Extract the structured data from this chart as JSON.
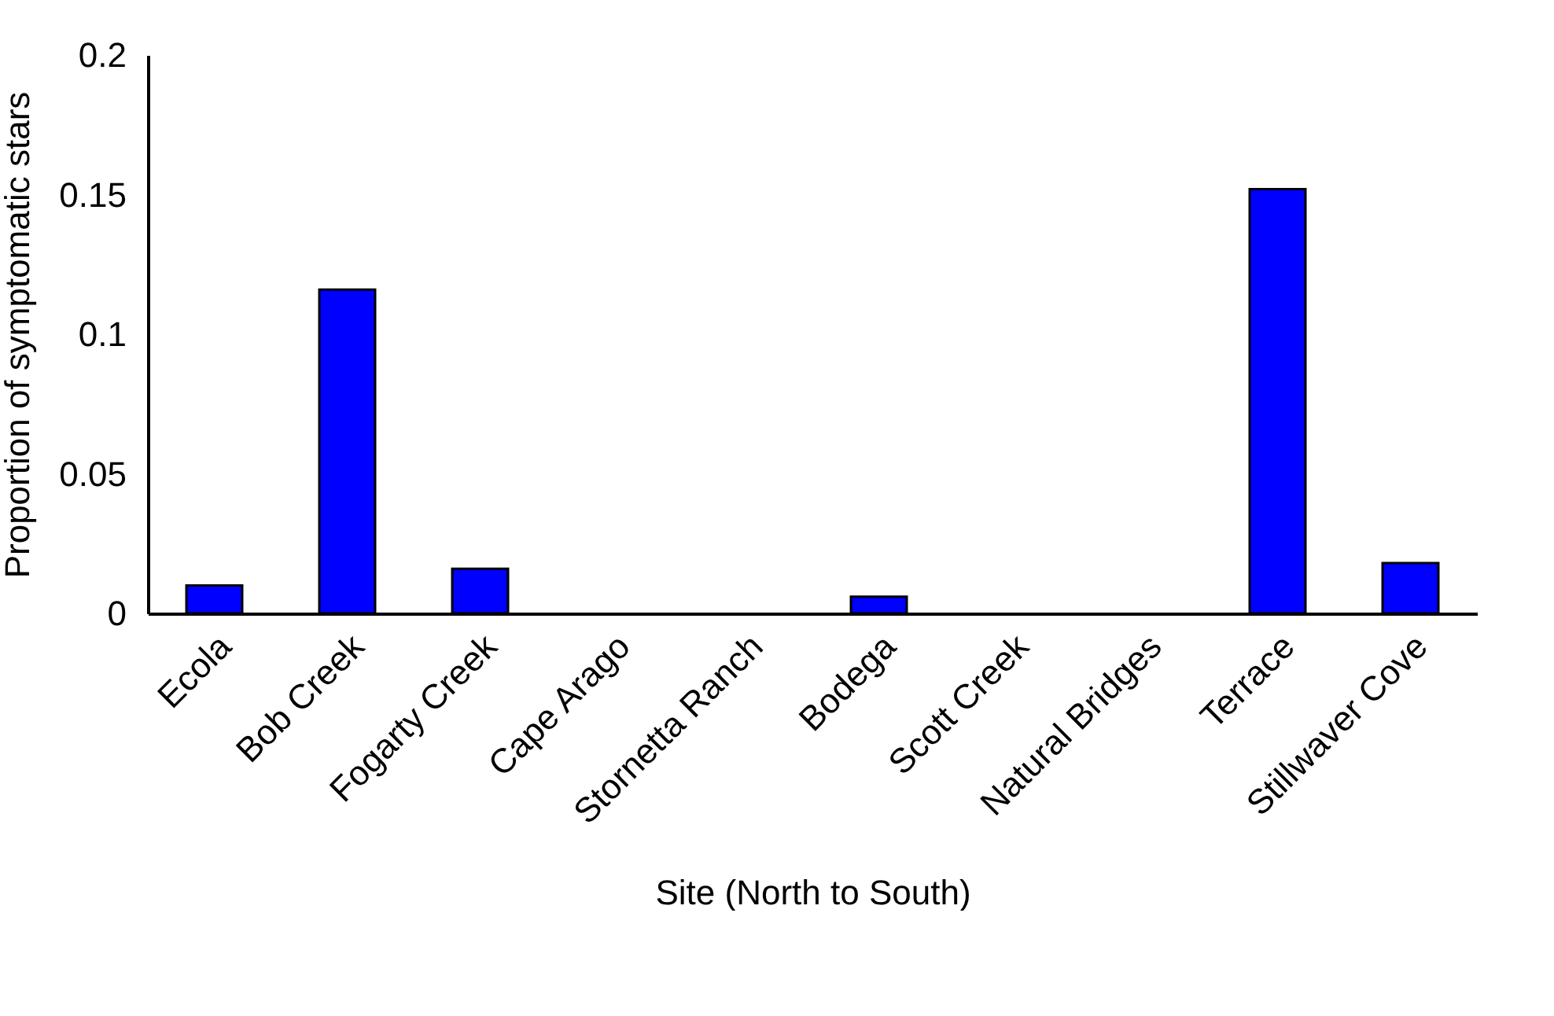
{
  "chart_data": {
    "type": "bar",
    "xlabel": "Site (North to South)",
    "ylabel": "Proportion of symptomatic stars",
    "categories": [
      "Ecola",
      "Bob Creek",
      "Fogarty Creek",
      "Cape Arago",
      "Stornetta Ranch",
      "Bodega",
      "Scott Creek",
      "Natural Bridges",
      "Terrace",
      "Stillwaver Cove"
    ],
    "values": [
      0.01,
      0.116,
      0.016,
      0,
      0,
      0.006,
      0,
      0,
      0.152,
      0.018
    ],
    "color": "#0000ff",
    "ylim": [
      0,
      0.2
    ],
    "yticks": [
      0,
      0.05,
      0.1,
      0.15,
      0.2
    ],
    "grid": false
  }
}
